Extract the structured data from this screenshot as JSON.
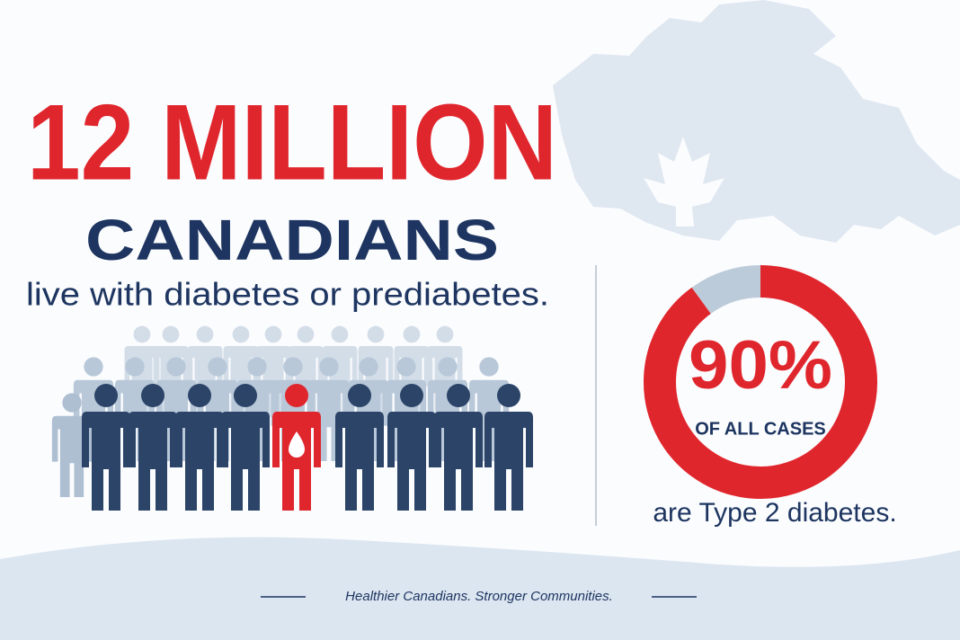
{
  "headline": {
    "number": "12 MILLION",
    "subject": "CANADIANS",
    "text": "live with diabetes or prediabetes."
  },
  "donut": {
    "value": 90,
    "label": "90%",
    "caption": "OF ALL CASES",
    "color": "#e0262d",
    "rest_color": "#bccbda"
  },
  "statement": "are Type 2 diabetes.",
  "footer": "Healthier Canadians. Stronger Communities."
}
